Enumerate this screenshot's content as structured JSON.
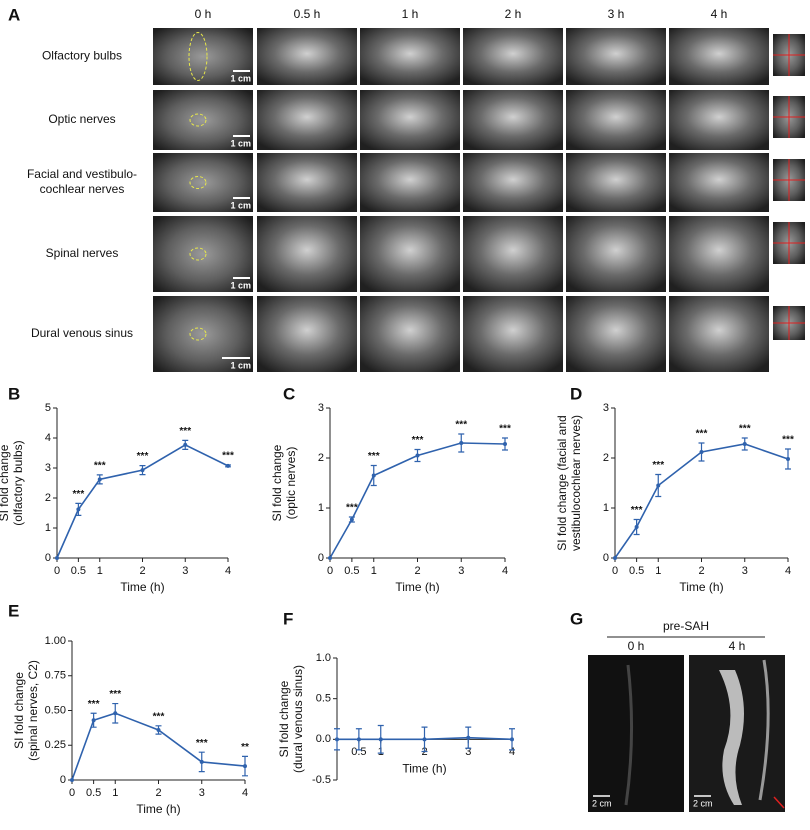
{
  "figure_a": {
    "panel": "A",
    "columns": [
      "0 h",
      "0.5 h",
      "1 h",
      "2 h",
      "3 h",
      "4 h"
    ],
    "rows": [
      [
        "Olfactory bulbs"
      ],
      [
        "Optic nerves"
      ],
      [
        "Facial and vestibulo-",
        "cochlear nerves"
      ],
      [
        "Spinal nerves"
      ],
      [
        "Dural venous sinus"
      ]
    ],
    "scale_bar": "1 cm"
  },
  "chart_data": [
    {
      "type": "line",
      "panel": "B",
      "ylabel": [
        "SI fold change",
        "(olfactory bulbs)"
      ],
      "xlabel": "Time (h)",
      "color": "#2f62ad",
      "x": [
        0,
        0.5,
        1,
        2,
        3,
        4
      ],
      "values": [
        0,
        1.62,
        2.62,
        2.93,
        3.77,
        3.07
      ],
      "errors": [
        0,
        0.2,
        0.15,
        0.15,
        0.15,
        0.03
      ],
      "annotations": [
        null,
        "***",
        "***",
        "***",
        "***",
        "***"
      ],
      "xlim": [
        0,
        4
      ],
      "xticks": [
        0,
        0.5,
        1,
        2,
        3,
        4
      ],
      "ylim": [
        0,
        5
      ],
      "yticks": [
        0,
        1,
        2,
        3,
        4,
        5
      ]
    },
    {
      "type": "line",
      "panel": "C",
      "ylabel": [
        "SI fold change",
        "(optic nerves)"
      ],
      "xlabel": "Time (h)",
      "color": "#2f62ad",
      "x": [
        0,
        0.5,
        1,
        2,
        3,
        4
      ],
      "values": [
        0,
        0.77,
        1.65,
        2.05,
        2.3,
        2.28
      ],
      "errors": [
        0,
        0.05,
        0.2,
        0.12,
        0.18,
        0.12
      ],
      "annotations": [
        null,
        "***",
        "***",
        "***",
        "***",
        "***"
      ],
      "xlim": [
        0,
        4
      ],
      "xticks": [
        0,
        0.5,
        1,
        2,
        3,
        4
      ],
      "ylim": [
        0,
        3
      ],
      "yticks": [
        0,
        1,
        2,
        3
      ]
    },
    {
      "type": "line",
      "panel": "D",
      "ylabel": [
        "SI fold change (facial and",
        "vestibulocochlear nerves)"
      ],
      "xlabel": "Time (h)",
      "color": "#2f62ad",
      "x": [
        0,
        0.5,
        1,
        2,
        3,
        4
      ],
      "values": [
        0,
        0.62,
        1.45,
        2.12,
        2.28,
        1.98
      ],
      "errors": [
        0,
        0.15,
        0.22,
        0.18,
        0.12,
        0.2
      ],
      "annotations": [
        null,
        "***",
        "***",
        "***",
        "***",
        "***"
      ],
      "xlim": [
        0,
        4
      ],
      "xticks": [
        0,
        0.5,
        1,
        2,
        3,
        4
      ],
      "ylim": [
        0,
        3
      ],
      "yticks": [
        0,
        1,
        2,
        3
      ]
    },
    {
      "type": "line",
      "panel": "E",
      "ylabel": [
        "SI fold change",
        "(spinal nerves, C2)"
      ],
      "xlabel": "Time (h)",
      "color": "#2f62ad",
      "x": [
        0,
        0.5,
        1,
        2,
        3,
        4
      ],
      "values": [
        0,
        0.43,
        0.48,
        0.36,
        0.13,
        0.1
      ],
      "errors": [
        0,
        0.05,
        0.07,
        0.03,
        0.07,
        0.07
      ],
      "annotations": [
        null,
        "***",
        "***",
        "***",
        "***",
        "**"
      ],
      "xlim": [
        0,
        4
      ],
      "xticks": [
        0,
        0.5,
        1,
        2,
        3,
        4
      ],
      "ylim": [
        0,
        1
      ],
      "yticks": [
        0,
        0.25,
        {
          "value": 0.5,
          "label": "0.50"
        },
        0.75,
        {
          "value": 1,
          "label": "1.00"
        }
      ]
    },
    {
      "type": "line",
      "panel": "F",
      "ylabel": [
        "SI fold change",
        "(dural venous sinus)"
      ],
      "xlabel": "Time (h)",
      "color": "#2f62ad",
      "x": [
        0,
        0.5,
        1,
        2,
        3,
        4
      ],
      "values": [
        0,
        0,
        0,
        0,
        0.02,
        0
      ],
      "errors": [
        0.13,
        0.13,
        0.17,
        0.15,
        0.13,
        0.13
      ],
      "xlim": [
        0,
        4
      ],
      "xticks": [
        0.5,
        1,
        2,
        3,
        4
      ],
      "ylim": [
        -0.5,
        1
      ],
      "yticks": [
        -0.5,
        {
          "value": 0,
          "label": "0.0"
        },
        0.5,
        {
          "value": 1,
          "label": "1.0"
        }
      ]
    }
  ],
  "figure_g": {
    "panel": "G",
    "group": "pre-SAH",
    "columns": [
      "0 h",
      "4 h"
    ],
    "scale_bar": "2 cm"
  }
}
